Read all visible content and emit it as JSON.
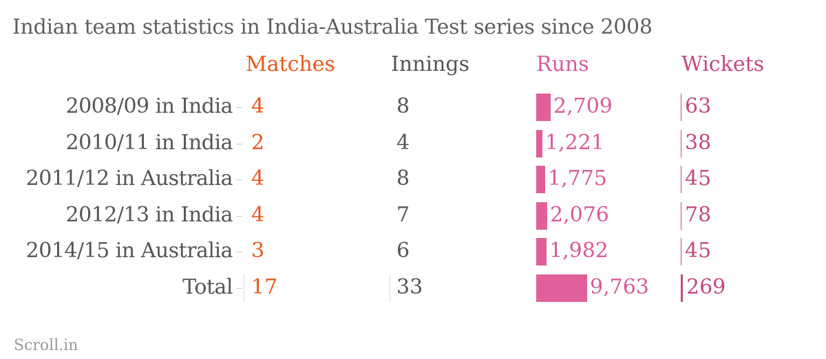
{
  "chart_data": {
    "type": "table",
    "title": "Indian team statistics in India-Australia Test series since 2008",
    "columns": [
      {
        "name": "Matches",
        "color": "#e8571e"
      },
      {
        "name": "Innings",
        "color": "#555555"
      },
      {
        "name": "Runs",
        "color": "#d85a99"
      },
      {
        "name": "Wickets",
        "color": "#c2497f"
      }
    ],
    "rows": [
      {
        "label": "2008/09 in India",
        "matches": "4",
        "innings": "8",
        "runs": 2709,
        "runs_label": "2,709",
        "wickets": 63,
        "wickets_label": "63"
      },
      {
        "label": "2010/11 in India",
        "matches": "2",
        "innings": "4",
        "runs": 1221,
        "runs_label": "1,221",
        "wickets": 38,
        "wickets_label": "38"
      },
      {
        "label": "2011/12 in Australia",
        "matches": "4",
        "innings": "8",
        "runs": 1775,
        "runs_label": "1,775",
        "wickets": 45,
        "wickets_label": "45"
      },
      {
        "label": "2012/13 in India",
        "matches": "4",
        "innings": "7",
        "runs": 2076,
        "runs_label": "2,076",
        "wickets": 78,
        "wickets_label": "78"
      },
      {
        "label": "2014/15 in Australia",
        "matches": "3",
        "innings": "6",
        "runs": 1982,
        "runs_label": "1,982",
        "wickets": 45,
        "wickets_label": "45"
      },
      {
        "label": "Total",
        "matches": "17",
        "innings": "33",
        "runs": 9763,
        "runs_label": "9,763",
        "wickets": 269,
        "wickets_label": "269"
      }
    ],
    "runs_max": 9763,
    "wickets_max": 269
  },
  "source": "Scroll.in",
  "colors": {
    "matches": "#e8571e",
    "innings": "#555555",
    "runs": "#d85a99",
    "runs_bar": "#e0609a",
    "wickets": "#c2497f",
    "label": "#555555"
  }
}
